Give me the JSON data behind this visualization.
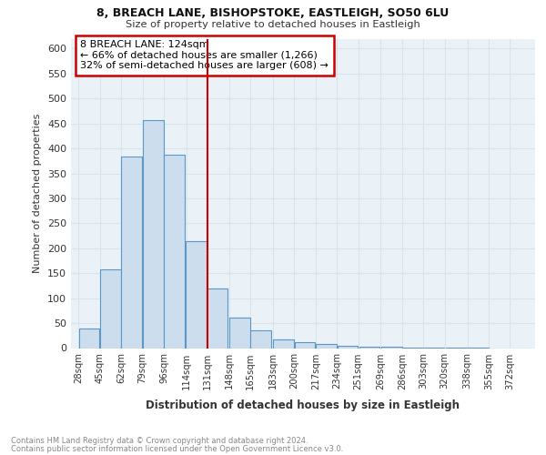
{
  "title1": "8, BREACH LANE, BISHOPSTOKE, EASTLEIGH, SO50 6LU",
  "title2": "Size of property relative to detached houses in Eastleigh",
  "xlabel": "Distribution of detached houses by size in Eastleigh",
  "ylabel": "Number of detached properties",
  "footnote1": "Contains HM Land Registry data © Crown copyright and database right 2024.",
  "footnote2": "Contains public sector information licensed under the Open Government Licence v3.0.",
  "annotation_line1": "8 BREACH LANE: 124sqm",
  "annotation_line2": "← 66% of detached houses are smaller (1,266)",
  "annotation_line3": "32% of semi-detached houses are larger (608) →",
  "bar_centers": [
    36.5,
    53.5,
    70.5,
    87.5,
    104.5,
    121.5,
    138.5,
    156.5,
    173.5,
    191.5,
    208.5,
    225.5,
    242.5,
    260.0,
    277.5,
    294.5,
    311.5,
    329.0,
    346.5,
    363.5,
    380.5
  ],
  "bar_width": 16.5,
  "bar_heights": [
    40,
    158,
    383,
    456,
    387,
    215,
    120,
    62,
    35,
    17,
    12,
    8,
    5,
    3,
    2,
    1,
    1,
    1,
    1,
    0,
    0
  ],
  "bar_color": "#ccdded",
  "bar_edge_color": "#5a96c8",
  "vline_x": 131,
  "vline_color": "#cc0000",
  "annotation_box_color": "#cc0000",
  "grid_color": "#d8e4ec",
  "bg_color": "#eaf2f8",
  "ylim": [
    0,
    620
  ],
  "xlim": [
    22,
    392
  ],
  "yticks": [
    0,
    50,
    100,
    150,
    200,
    250,
    300,
    350,
    400,
    450,
    500,
    550,
    600
  ],
  "xtick_labels": [
    "28sqm",
    "45sqm",
    "62sqm",
    "79sqm",
    "96sqm",
    "114sqm",
    "131sqm",
    "148sqm",
    "165sqm",
    "183sqm",
    "200sqm",
    "217sqm",
    "234sqm",
    "251sqm",
    "269sqm",
    "286sqm",
    "303sqm",
    "320sqm",
    "338sqm",
    "355sqm",
    "372sqm"
  ],
  "xtick_positions": [
    28,
    45,
    62,
    79,
    96,
    114,
    131,
    148,
    165,
    183,
    200,
    217,
    234,
    251,
    269,
    286,
    303,
    320,
    338,
    355,
    372
  ]
}
